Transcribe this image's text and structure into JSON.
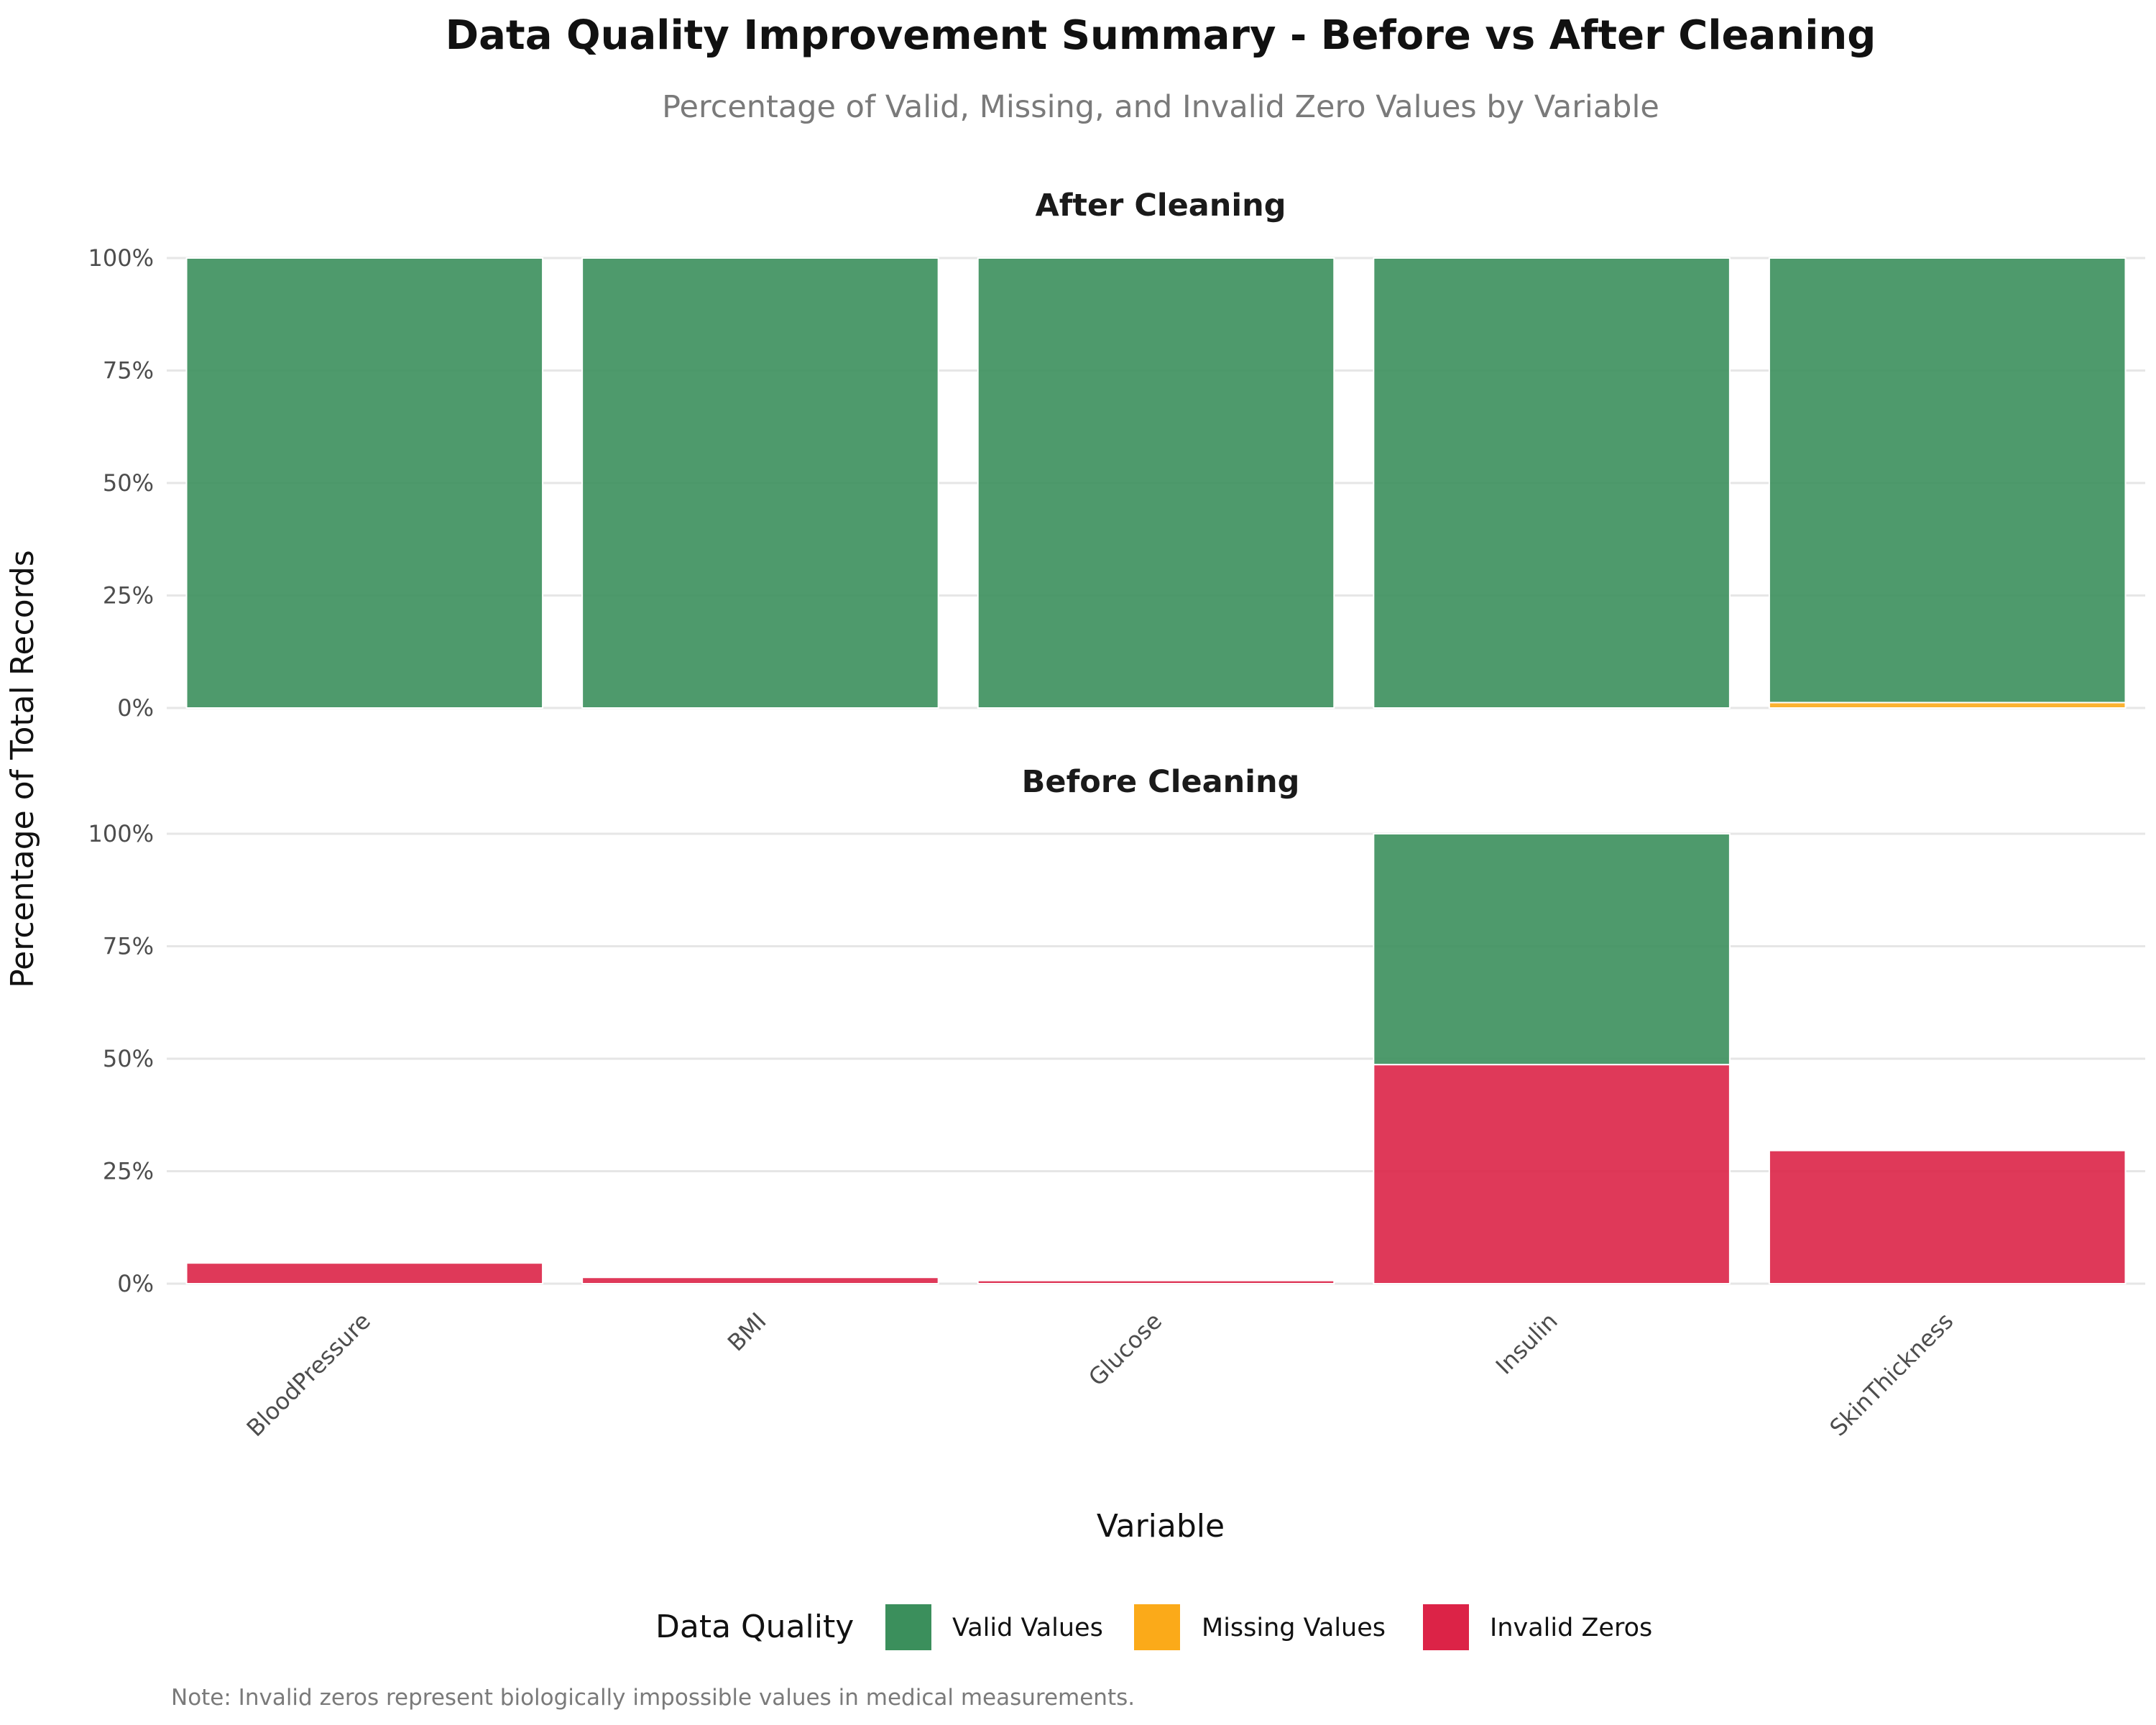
{
  "chart_data": {
    "type": "bar",
    "stacked": true,
    "title": "Data Quality Improvement Summary - Before vs After Cleaning",
    "subtitle": "Percentage of Valid, Missing, and Invalid Zero Values by Variable",
    "xlabel": "Variable",
    "ylabel": "Percentage of Total Records",
    "caption": "Note: Invalid zeros represent biologically impossible values in medical measurements.",
    "legend_title": "Data Quality",
    "legend_position": "bottom",
    "categories": [
      "BloodPressure",
      "BMI",
      "Glucose",
      "Insulin",
      "SkinThickness"
    ],
    "ylim": [
      0,
      100
    ],
    "y_ticks": [
      "0%",
      "25%",
      "50%",
      "75%",
      "100%"
    ],
    "grid": true,
    "series_styles": [
      {
        "key": "valid",
        "name": "Valid Values",
        "color": "#3b8f5c"
      },
      {
        "key": "missing",
        "name": "Missing Values",
        "color": "#fbaa19"
      },
      {
        "key": "invalid",
        "name": "Invalid Zeros",
        "color": "#dc2347"
      }
    ],
    "panels": [
      {
        "title": "After Cleaning",
        "series": [
          {
            "name": "Valid Values",
            "values": [
              100,
              100,
              100,
              100,
              98.8
            ]
          },
          {
            "name": "Missing Values",
            "values": [
              0,
              0,
              0,
              0,
              1.2
            ]
          },
          {
            "name": "Invalid Zeros",
            "values": [
              0,
              0,
              0,
              0,
              0
            ]
          }
        ]
      },
      {
        "title": "Before Cleaning",
        "series": [
          {
            "name": "Valid Values",
            "values": [
              0,
              0,
              0,
              51.3,
              0
            ]
          },
          {
            "name": "Missing Values",
            "values": [
              0,
              0,
              0,
              0,
              0
            ]
          },
          {
            "name": "Invalid Zeros",
            "values": [
              4.6,
              1.4,
              0.7,
              48.7,
              29.6
            ]
          }
        ]
      }
    ]
  }
}
